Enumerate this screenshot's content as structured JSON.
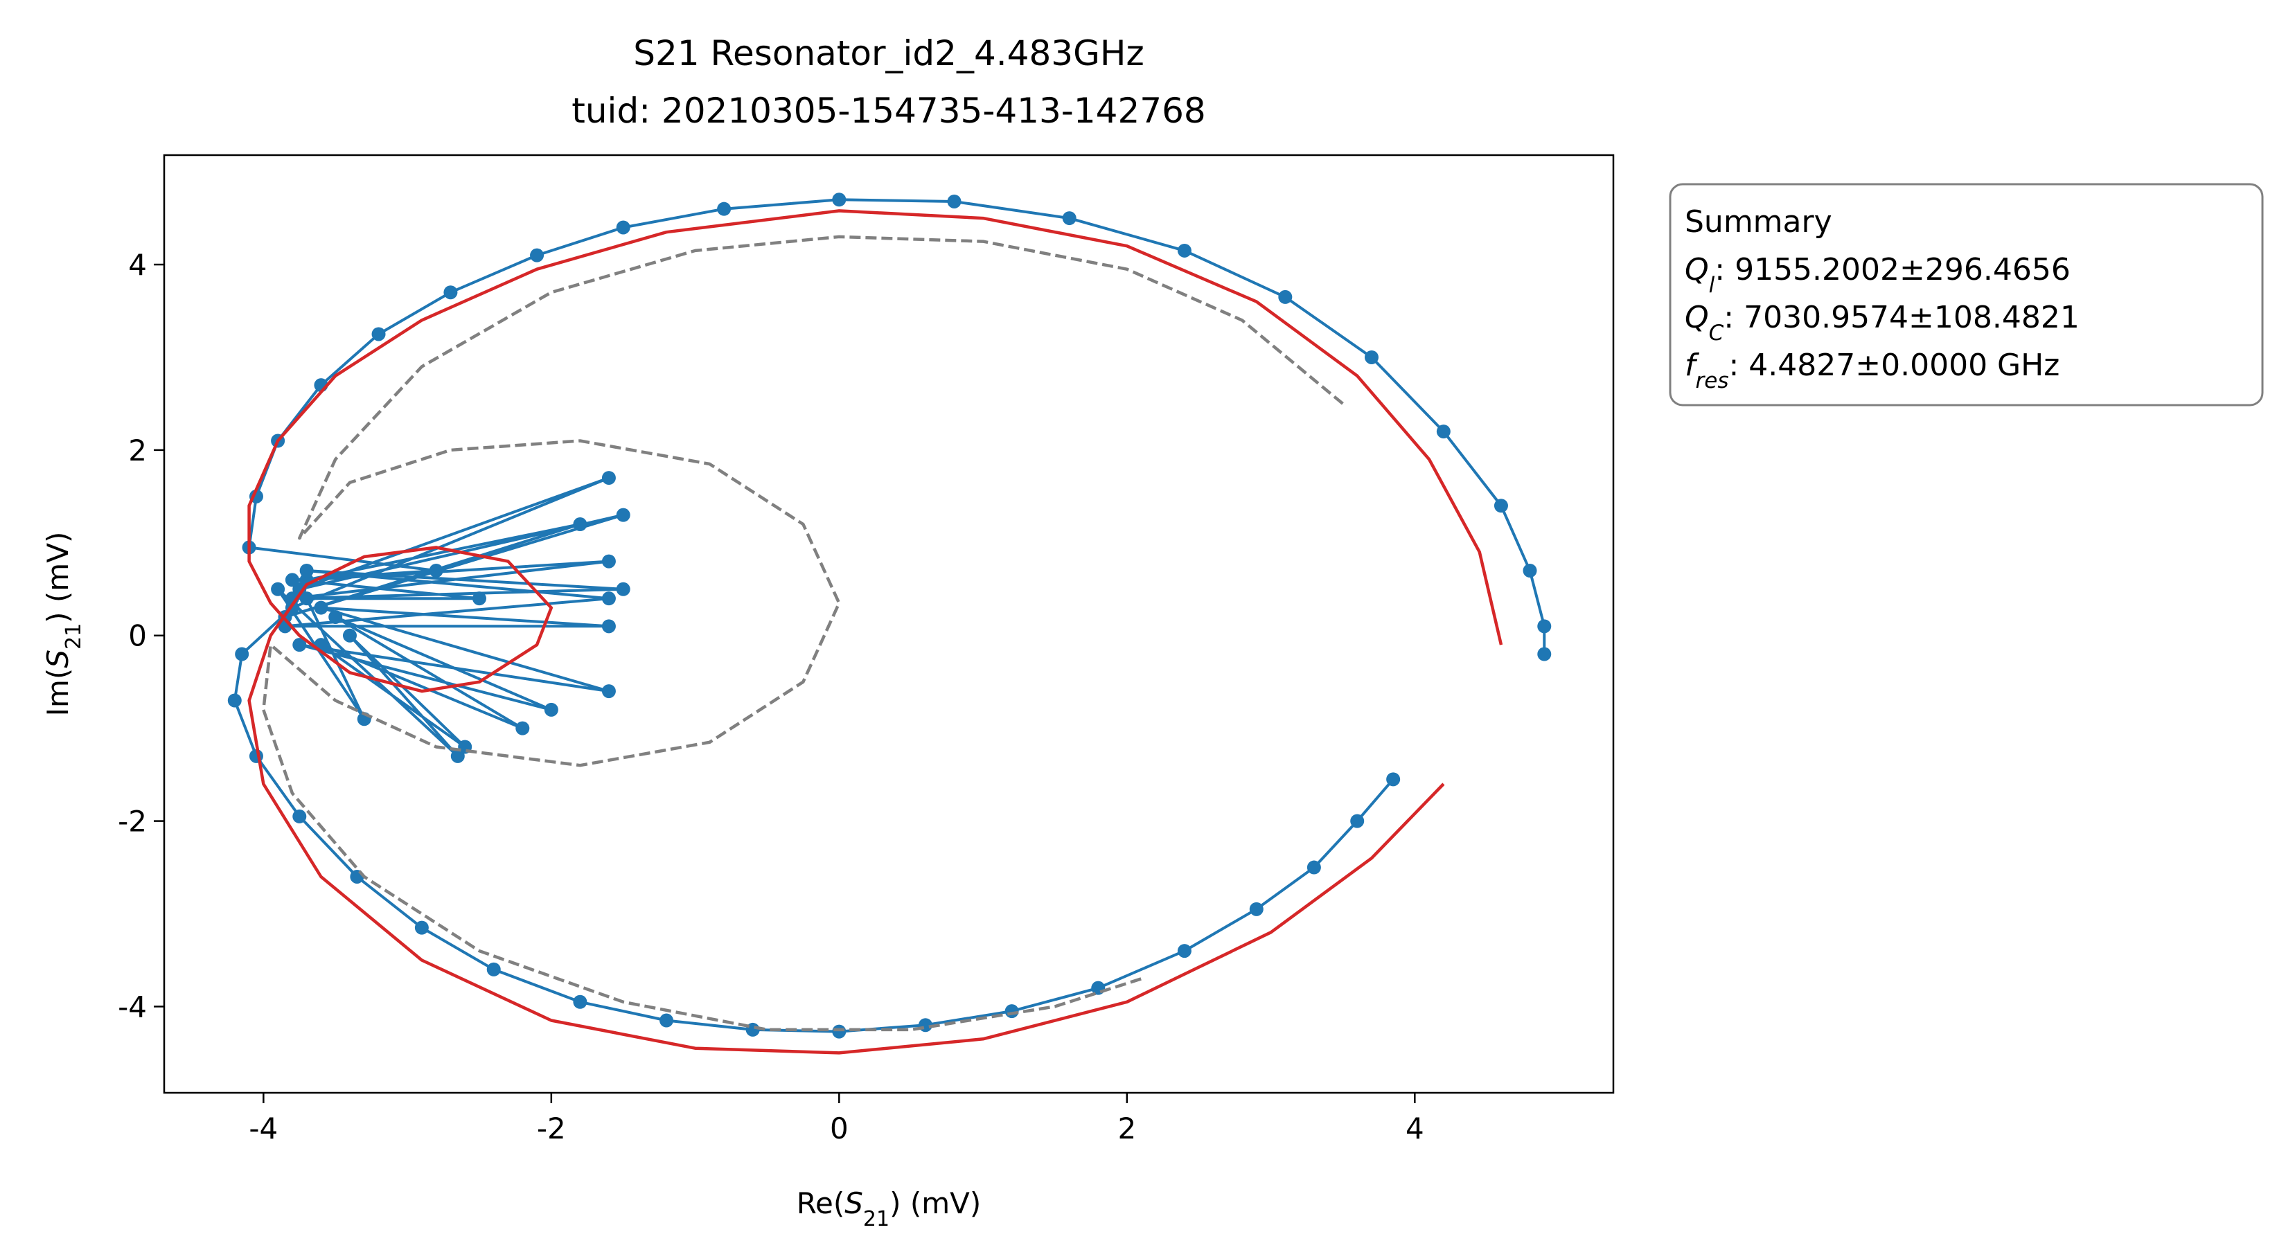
{
  "chart_data": {
    "type": "line",
    "title": [
      "S21 Resonator_id2_4.483GHz",
      "tuid: 20210305-154735-413-142768"
    ],
    "xlabel": {
      "pre": "Re(",
      "symbol": "S",
      "sub": "21",
      "post": ") (mV)"
    },
    "ylabel": {
      "pre": "Im(",
      "symbol": "S",
      "sub": "21",
      "post": ") (mV)"
    },
    "xlim": [
      -4.69,
      5.38
    ],
    "ylim": [
      -4.93,
      5.18
    ],
    "xticks": [
      -4,
      -2,
      0,
      2,
      4
    ],
    "yticks": [
      -4,
      -2,
      0,
      2,
      4
    ],
    "grid": false,
    "series": [
      {
        "color": "#1f77b4",
        "linestyle": "solid",
        "marker": true,
        "x": [
          3.85,
          3.6,
          3.3,
          2.9,
          2.4,
          1.8,
          1.2,
          0.6,
          0.0,
          -0.6,
          -1.2,
          -1.8,
          -2.4,
          -2.9,
          -3.35,
          -3.75,
          -4.05,
          -4.2,
          -4.15,
          -3.8,
          -1.6,
          -3.75,
          -1.5,
          -3.85,
          -1.8,
          -3.7,
          -1.6,
          -3.8,
          -1.5,
          -3.7,
          -1.6,
          -3.85,
          -1.6,
          -3.6,
          -1.6,
          -3.75,
          -2.0,
          -3.5,
          -2.2,
          -3.6,
          -2.6,
          -3.4,
          -2.65,
          -3.9,
          -3.3,
          -3.7,
          -2.5,
          -3.8,
          -2.8,
          -4.1,
          -4.05,
          -3.9,
          -3.6,
          -3.2,
          -2.7,
          -2.1,
          -1.5,
          -0.8,
          0.0,
          0.8,
          1.6,
          2.4,
          3.1,
          3.7,
          4.2,
          4.6,
          4.8,
          4.9,
          4.9
        ],
        "y": [
          -1.55,
          -2.0,
          -2.5,
          -2.95,
          -3.4,
          -3.8,
          -4.05,
          -4.2,
          -4.27,
          -4.25,
          -4.15,
          -3.95,
          -3.6,
          -3.15,
          -2.6,
          -1.95,
          -1.3,
          -0.7,
          -0.2,
          0.3,
          1.7,
          0.5,
          1.3,
          0.2,
          1.2,
          0.6,
          0.8,
          0.4,
          0.5,
          0.7,
          0.4,
          0.1,
          0.1,
          0.3,
          -0.6,
          -0.1,
          -0.8,
          0.2,
          -1.0,
          -0.1,
          -1.2,
          0.0,
          -1.3,
          0.5,
          -0.9,
          0.4,
          0.4,
          0.6,
          0.7,
          0.95,
          1.5,
          2.1,
          2.7,
          3.25,
          3.7,
          4.1,
          4.4,
          4.6,
          4.7,
          4.68,
          4.5,
          4.15,
          3.65,
          3.0,
          2.2,
          1.4,
          0.7,
          0.1,
          -0.2
        ]
      },
      {
        "color": "#d62728",
        "linestyle": "solid",
        "marker": false,
        "x": [
          4.2,
          3.7,
          3.0,
          2.0,
          1.0,
          0.0,
          -1.0,
          -2.0,
          -2.9,
          -3.6,
          -4.0,
          -4.1,
          -3.95,
          -3.7,
          -3.3,
          -2.8,
          -2.3,
          -2.0,
          -2.1,
          -2.5,
          -2.9,
          -3.4,
          -3.75,
          -3.95,
          -4.1,
          -4.1,
          -3.9,
          -3.5,
          -2.9,
          -2.1,
          -1.2,
          0.0,
          1.0,
          2.0,
          2.9,
          3.6,
          4.1,
          4.45,
          4.6
        ],
        "y": [
          -1.6,
          -2.4,
          -3.2,
          -3.95,
          -4.35,
          -4.5,
          -4.45,
          -4.15,
          -3.5,
          -2.6,
          -1.6,
          -0.7,
          0.0,
          0.55,
          0.85,
          0.95,
          0.8,
          0.3,
          -0.1,
          -0.5,
          -0.6,
          -0.4,
          0.0,
          0.35,
          0.8,
          1.4,
          2.1,
          2.8,
          3.4,
          3.95,
          4.35,
          4.58,
          4.5,
          4.2,
          3.6,
          2.8,
          1.9,
          0.9,
          -0.1
        ]
      },
      {
        "color": "#808080",
        "linestyle": "dashed",
        "marker": false,
        "x": [
          3.5,
          2.8,
          2.0,
          1.0,
          0.0,
          -1.0,
          -2.0,
          -2.9,
          -3.5,
          -3.75,
          -3.4,
          -2.7,
          -1.8,
          -0.9,
          -0.25,
          0.0,
          -0.25,
          -0.9,
          -1.8,
          -2.8,
          -3.5,
          -3.95,
          -4.0,
          -3.8,
          -3.3,
          -2.5,
          -1.5,
          -0.5,
          0.5,
          1.5,
          2.1
        ],
        "y": [
          2.5,
          3.4,
          3.95,
          4.25,
          4.3,
          4.15,
          3.7,
          2.9,
          1.9,
          1.05,
          1.65,
          2.0,
          2.1,
          1.85,
          1.2,
          0.35,
          -0.5,
          -1.15,
          -1.4,
          -1.2,
          -0.7,
          -0.1,
          -0.8,
          -1.7,
          -2.6,
          -3.4,
          -3.95,
          -4.25,
          -4.25,
          -4.0,
          -3.7
        ]
      }
    ],
    "annotation": {
      "heading": "Summary",
      "lines": [
        {
          "symbol": "Q",
          "sub": "l",
          "text": ": 9155.2002±296.4656"
        },
        {
          "symbol": "Q",
          "sub": "C",
          "text": ": 7030.9574±108.4821"
        },
        {
          "symbol": "f",
          "sub": "res",
          "text": ": 4.4827±0.0000 GHz"
        }
      ]
    }
  }
}
